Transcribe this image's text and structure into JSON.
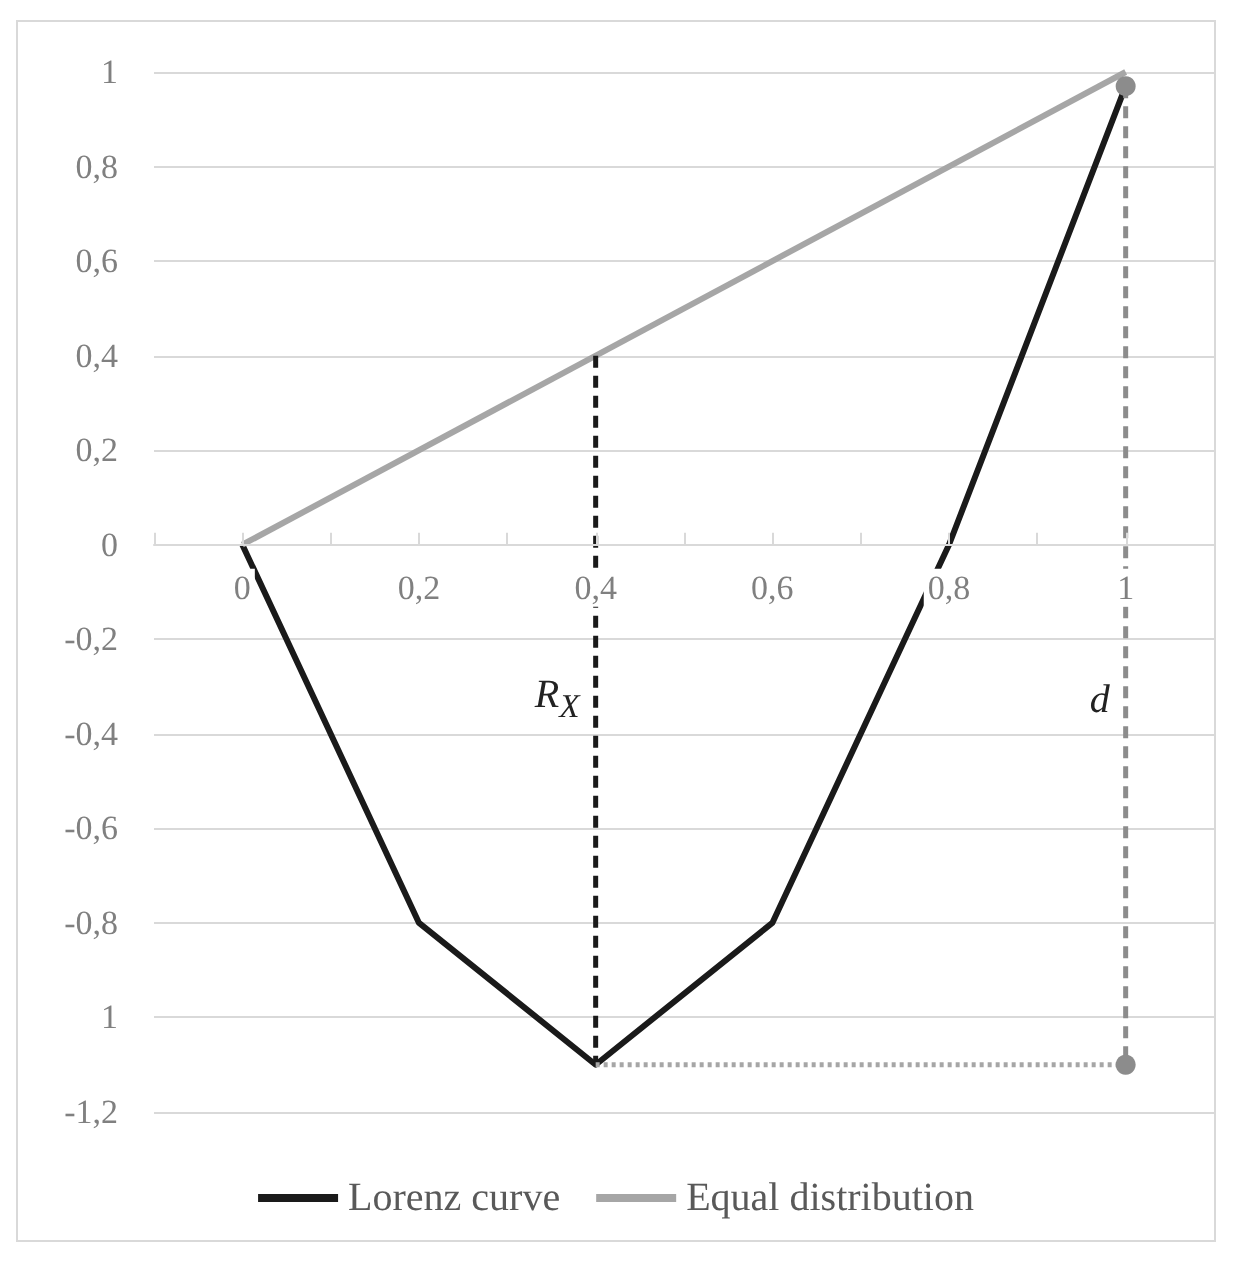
{
  "chart_data": {
    "type": "line",
    "marker": "none",
    "line_style": "solid",
    "grid": "y",
    "legend": "bottom",
    "xlim": [
      -0.1,
      1.1
    ],
    "xticks": [
      {
        "value": -0.1,
        "label": null
      },
      {
        "value": 0,
        "label": "0"
      },
      {
        "value": 0.1,
        "label": null
      },
      {
        "value": 0.2,
        "label": "0,2"
      },
      {
        "value": 0.3,
        "label": null
      },
      {
        "value": 0.4,
        "label": "0,4"
      },
      {
        "value": 0.5,
        "label": null
      },
      {
        "value": 0.6,
        "label": "0,6"
      },
      {
        "value": 0.7,
        "label": null
      },
      {
        "value": 0.8,
        "label": "0,8"
      },
      {
        "value": 0.9,
        "label": null
      },
      {
        "value": 1,
        "label": "1"
      },
      {
        "value": 1.1,
        "label": null
      }
    ],
    "ylim": [
      -1.2,
      1
    ],
    "yticks": [
      {
        "value": -1.2,
        "label": "-1,2"
      },
      {
        "value": -1,
        "label": "1"
      },
      {
        "value": -0.8,
        "label": "-0,8"
      },
      {
        "value": -0.6,
        "label": "-0,6"
      },
      {
        "value": -0.4,
        "label": "-0,4"
      },
      {
        "value": -0.2,
        "label": "-0,2"
      },
      {
        "value": 0,
        "label": "0"
      },
      {
        "value": 0.2,
        "label": "0,2"
      },
      {
        "value": 0.4,
        "label": "0,4"
      },
      {
        "value": 0.6,
        "label": "0,6"
      },
      {
        "value": 0.8,
        "label": "0,8"
      },
      {
        "value": 1,
        "label": "1"
      }
    ],
    "series": [
      {
        "name": "Lorenz curve",
        "color": "#1a1a1a",
        "x": [
          0,
          0.2,
          0.4,
          0.6,
          0.8,
          1
        ],
        "values": [
          0,
          -0.8,
          -1.1,
          -0.8,
          0,
          0.97
        ]
      },
      {
        "name": "Equal distribution",
        "color": "#a6a6a6",
        "x": [
          0,
          1
        ],
        "values": [
          0,
          1
        ]
      },
      {
        "color": "#1a1a1a",
        "line_style": "dashed",
        "x": [
          0.4,
          0.4
        ],
        "values": [
          0.4,
          -1.1
        ]
      },
      {
        "color": "#8c8c8c",
        "line_style": "dashed",
        "marker": "circle",
        "x": [
          1,
          1
        ],
        "values": [
          0.97,
          -1.1
        ]
      },
      {
        "color": "#a6a6a6",
        "line_style": "dotted",
        "x": [
          0.4,
          1
        ],
        "values": [
          -1.1,
          -1.1
        ]
      }
    ],
    "annotations": [
      {
        "text": "R$_{X}$",
        "x": 0.4,
        "y": -0.33
      },
      {
        "text": "d",
        "x": 1,
        "y": -0.33
      }
    ]
  }
}
